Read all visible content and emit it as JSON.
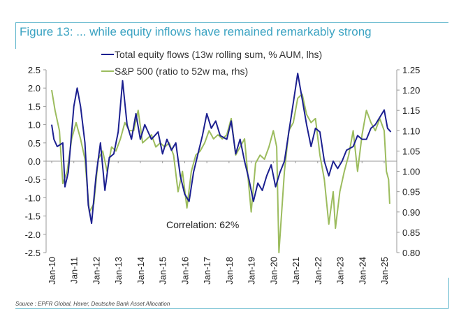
{
  "chart_data": {
    "type": "line",
    "title": "Figure 13: ... while equity inflows have remained remarkably strong",
    "source": "Source : EPFR Global, Haver, Deutsche Bank Asset Allocation",
    "annotation": "Correlation: 62%",
    "x_ticks": [
      "Jan-10",
      "Jan-11",
      "Jan-12",
      "Jan-13",
      "Jan-14",
      "Jan-15",
      "Jan-16",
      "Jan-17",
      "Jan-18",
      "Jan-19",
      "Jan-20",
      "Jan-21",
      "Jan-22",
      "Jan-23",
      "Jan-24",
      "Jan-25"
    ],
    "x_range": [
      2010,
      2025.6
    ],
    "y_left": {
      "range": [
        -2.5,
        2.5
      ],
      "ticks": [
        "2.5",
        "2.0",
        "1.5",
        "1.0",
        "0.5",
        "0.0",
        "-0.5",
        "-1.0",
        "-1.5",
        "-2.0",
        "-2.5"
      ]
    },
    "y_right": {
      "range": [
        0.8,
        1.25
      ],
      "ticks": [
        "1.25",
        "1.20",
        "1.15",
        "1.10",
        "1.05",
        "1.00",
        "0.95",
        "0.90",
        "0.85",
        "0.80"
      ]
    },
    "grid": false,
    "legend_placement": "top",
    "series": [
      {
        "name": "Total equity flows (13w rolling sum, % AUM, lhs)",
        "axis": "left",
        "color": "#1c2090",
        "x": [
          2010.0,
          2010.1,
          2010.25,
          2010.5,
          2010.6,
          2010.75,
          2011.0,
          2011.15,
          2011.3,
          2011.5,
          2011.65,
          2011.8,
          2012.0,
          2012.2,
          2012.4,
          2012.6,
          2012.8,
          2013.0,
          2013.2,
          2013.4,
          2013.6,
          2013.8,
          2014.0,
          2014.2,
          2014.5,
          2014.8,
          2015.0,
          2015.2,
          2015.4,
          2015.6,
          2015.8,
          2016.0,
          2016.2,
          2016.4,
          2016.6,
          2016.8,
          2017.0,
          2017.2,
          2017.4,
          2017.6,
          2017.9,
          2018.1,
          2018.3,
          2018.5,
          2018.7,
          2018.9,
          2019.1,
          2019.3,
          2019.5,
          2019.7,
          2019.9,
          2020.1,
          2020.3,
          2020.5,
          2020.7,
          2020.9,
          2021.1,
          2021.3,
          2021.5,
          2021.7,
          2021.9,
          2022.1,
          2022.3,
          2022.5,
          2022.7,
          2022.9,
          2023.1,
          2023.3,
          2023.6,
          2023.8,
          2024.0,
          2024.2,
          2024.4,
          2024.6,
          2024.8,
          2025.0,
          2025.15,
          2025.3
        ],
        "values": [
          1.0,
          0.6,
          0.4,
          0.5,
          -0.7,
          -0.3,
          1.5,
          2.0,
          1.5,
          0.5,
          -1.2,
          -1.7,
          -0.4,
          0.5,
          -0.8,
          0.1,
          0.2,
          0.8,
          2.2,
          1.0,
          0.6,
          1.3,
          0.6,
          1.0,
          0.6,
          0.8,
          0.2,
          0.6,
          0.3,
          0.5,
          -0.4,
          -0.9,
          -1.1,
          -0.3,
          0.2,
          0.7,
          1.3,
          0.9,
          1.1,
          0.7,
          0.6,
          1.1,
          0.2,
          0.6,
          0.0,
          -0.5,
          -1.1,
          -0.6,
          -0.8,
          -0.4,
          -0.1,
          -0.7,
          -0.3,
          0.0,
          0.8,
          1.6,
          2.4,
          1.7,
          1.0,
          0.4,
          0.9,
          0.8,
          0.0,
          -0.4,
          0.0,
          -0.2,
          0.0,
          0.3,
          0.4,
          0.7,
          0.6,
          0.6,
          0.9,
          1.0,
          1.2,
          1.4,
          0.9,
          0.8
        ]
      },
      {
        "name": "S&P 500 (ratio to 52w ma, rhs)",
        "axis": "right",
        "color": "#9cbc5e",
        "x": [
          2010.0,
          2010.15,
          2010.35,
          2010.5,
          2010.7,
          2010.9,
          2011.1,
          2011.3,
          2011.5,
          2011.7,
          2011.9,
          2012.1,
          2012.3,
          2012.5,
          2012.7,
          2012.9,
          2013.1,
          2013.3,
          2013.5,
          2013.7,
          2013.9,
          2014.1,
          2014.3,
          2014.5,
          2014.7,
          2014.9,
          2015.1,
          2015.3,
          2015.5,
          2015.7,
          2015.9,
          2016.1,
          2016.3,
          2016.5,
          2016.7,
          2016.9,
          2017.1,
          2017.3,
          2017.5,
          2017.7,
          2017.9,
          2018.1,
          2018.3,
          2018.5,
          2018.7,
          2018.9,
          2019.0,
          2019.2,
          2019.4,
          2019.6,
          2019.8,
          2020.0,
          2020.15,
          2020.25,
          2020.5,
          2020.7,
          2020.9,
          2021.1,
          2021.3,
          2021.5,
          2021.7,
          2021.9,
          2022.1,
          2022.3,
          2022.5,
          2022.7,
          2022.8,
          2023.0,
          2023.2,
          2023.4,
          2023.6,
          2023.8,
          2024.0,
          2024.2,
          2024.4,
          2024.6,
          2024.8,
          2025.0,
          2025.1,
          2025.2,
          2025.25
        ],
        "values": [
          1.2,
          1.15,
          1.1,
          0.97,
          1.0,
          1.08,
          1.12,
          1.08,
          1.03,
          0.9,
          0.92,
          1.03,
          1.05,
          1.0,
          1.06,
          1.05,
          1.08,
          1.12,
          1.1,
          1.1,
          1.15,
          1.07,
          1.08,
          1.09,
          1.06,
          1.07,
          1.06,
          1.07,
          1.04,
          0.95,
          1.0,
          0.91,
          1.0,
          1.04,
          1.05,
          1.07,
          1.1,
          1.08,
          1.09,
          1.08,
          1.09,
          1.13,
          1.04,
          1.06,
          1.08,
          0.96,
          0.9,
          1.02,
          1.04,
          1.03,
          1.06,
          1.1,
          1.06,
          0.8,
          1.0,
          1.1,
          1.12,
          1.18,
          1.19,
          1.14,
          1.12,
          1.13,
          1.04,
          0.98,
          0.87,
          0.95,
          0.86,
          0.95,
          1.0,
          1.04,
          1.1,
          1.0,
          1.09,
          1.15,
          1.12,
          1.1,
          1.13,
          1.1,
          1.0,
          0.98,
          0.92
        ]
      }
    ]
  }
}
